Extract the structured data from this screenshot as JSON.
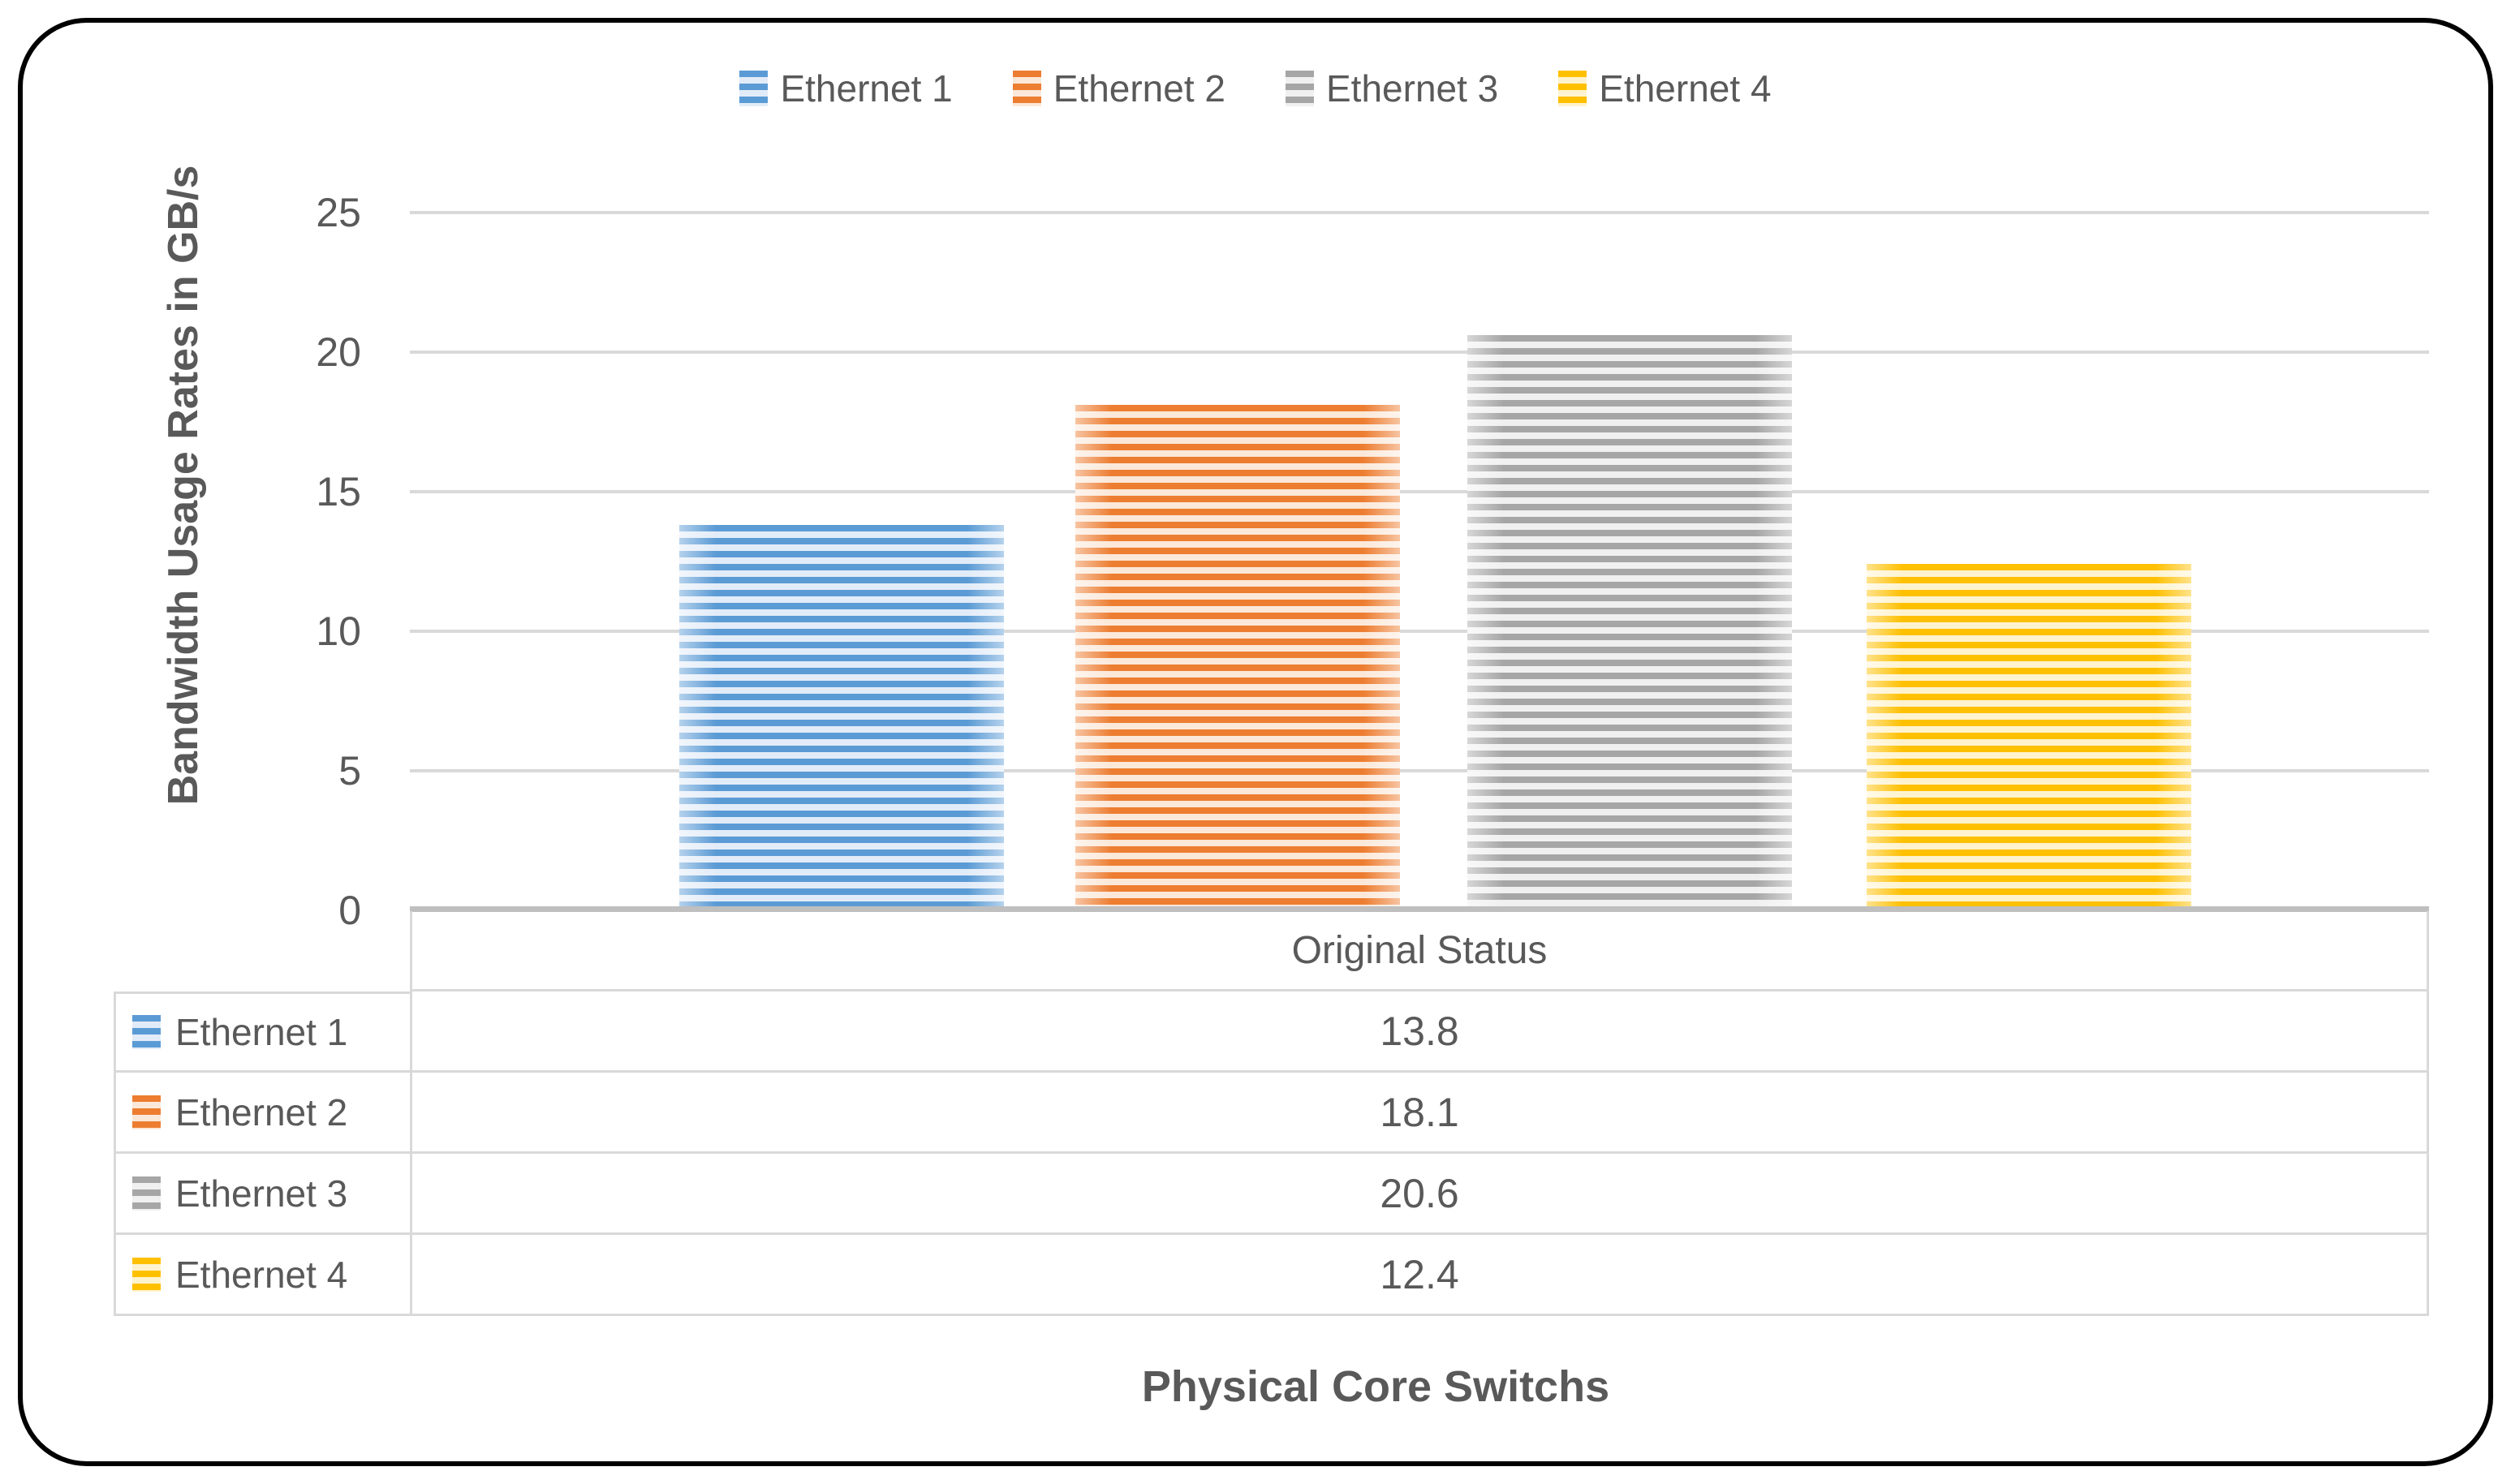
{
  "chart_data": {
    "type": "bar",
    "title": "",
    "categories": [
      "Original Status"
    ],
    "series": [
      {
        "name": "Ethernet 1",
        "values": [
          13.8
        ],
        "color": "#5B9BD5",
        "pattern_bg": "#E2ECF8",
        "pattern": "horizontal-stripes"
      },
      {
        "name": "Ethernet 2",
        "values": [
          18.1
        ],
        "color": "#ED7D31",
        "pattern_bg": "#FBE8D9",
        "pattern": "horizontal-stripes"
      },
      {
        "name": "Ethernet 3",
        "values": [
          20.6
        ],
        "color": "#A6A6A6",
        "pattern_bg": "#F0F0F0",
        "pattern": "horizontal-stripes"
      },
      {
        "name": "Ethernet 4",
        "values": [
          12.4
        ],
        "color": "#FFC000",
        "pattern_bg": "#FFF3CE",
        "pattern": "horizontal-stripes"
      }
    ],
    "xlabel": "Physical Core Switchs",
    "ylabel": "Bandwidth Usage Rates in GB/s",
    "ylim": [
      0,
      25
    ],
    "ytick_labels": [
      "25",
      "20",
      "15",
      "10",
      "5",
      "0"
    ],
    "grid": "horizontal-on",
    "legend_position": "top",
    "data_table": {
      "header": "Original Status",
      "shows_legend_keys": true
    }
  },
  "style_colors": {
    "text": "#595959",
    "gridline": "#D9D9D9",
    "axis_line": "#BFBFBF",
    "frame_border": "#000000"
  }
}
